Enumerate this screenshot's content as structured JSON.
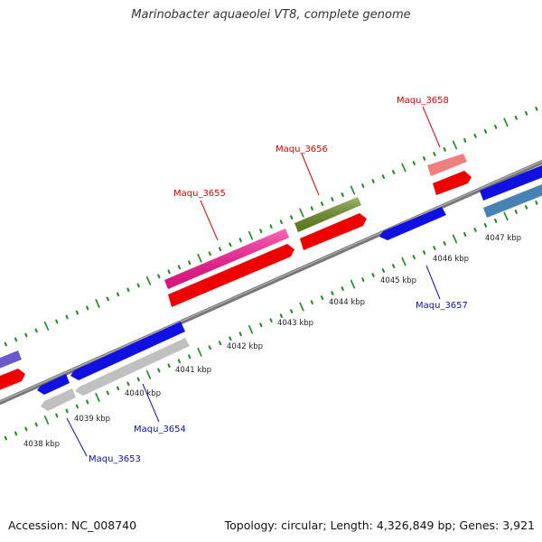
{
  "title": "Marinobacter aquaeolei VT8, complete genome",
  "footer": {
    "accession": "Accession: NC_008740",
    "topology": "Topology: circular; Length: 4,326,849 bp; Genes: 3,921"
  },
  "colors": {
    "ticks": "#1a8a1a",
    "backbone": "#808080",
    "label_top": "#dd0000",
    "label_bottom": "#1111aa"
  },
  "scale_labels": [
    "4038 kbp",
    "4039 kbp",
    "4040 kbp",
    "4041 kbp",
    "4042 kbp",
    "4043 kbp",
    "4044 kbp",
    "4045 kbp",
    "4046 kbp",
    "4047 kbp"
  ],
  "gene_labels_top": [
    "Maqu_3655",
    "Maqu_3656",
    "Maqu_3658"
  ],
  "gene_labels_bottom": [
    "Maqu_3653",
    "Maqu_3654",
    "Maqu_3657"
  ]
}
